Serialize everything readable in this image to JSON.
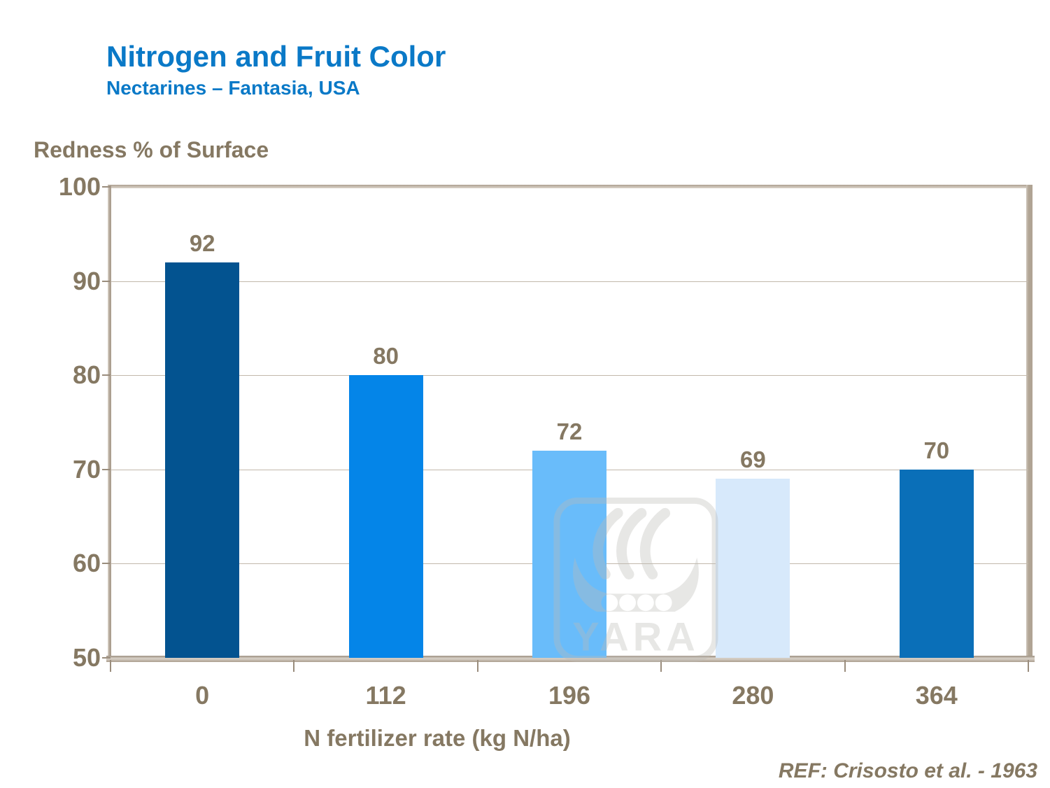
{
  "header": {
    "title": "Nitrogen and Fruit Color",
    "subtitle": "Nectarines – Fantasia, USA"
  },
  "watermark": {
    "brand": "YARA"
  },
  "footer": {
    "reference": "REF: Crisosto et al. - 1963"
  },
  "colors": {
    "title_blue": "#0a79c7",
    "axis_text_brown": "#857862",
    "gridline": "#c2b8ab",
    "axis_wall_tan": "#b0a494",
    "watermark_gray": "#bdbbb7"
  },
  "chart_data": {
    "type": "bar",
    "title": "Nitrogen and Fruit Color",
    "subtitle": "Nectarines – Fantasia, USA",
    "categories": [
      "0",
      "112",
      "196",
      "280",
      "364"
    ],
    "values": [
      92,
      80,
      72,
      69,
      70
    ],
    "bar_colors": [
      "#035390",
      "#0485E8",
      "#69BCFA",
      "#D7E9FB",
      "#0A6FB8"
    ],
    "value_labels": [
      "92",
      "80",
      "72",
      "69",
      "70"
    ],
    "xlabel": "N fertilizer rate (kg N/ha)",
    "ylabel": "Redness % of Surface",
    "ylim": [
      50,
      100
    ],
    "yticks": [
      100,
      90,
      80,
      70,
      60,
      50
    ],
    "grid": "horizontal-only",
    "legend": "none",
    "reference": "REF: Crisosto et al. - 1963"
  }
}
